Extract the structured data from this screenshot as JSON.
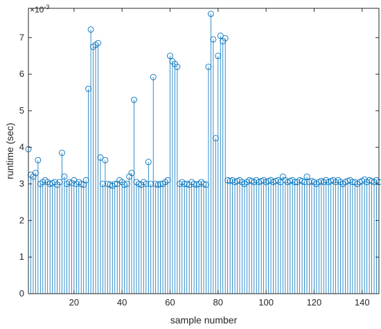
{
  "chart_data": {
    "type": "stem",
    "xlabel": "sample number",
    "ylabel": "runtime (sec)",
    "xlim": [
      1,
      147
    ],
    "ylim": [
      0,
      0.0078
    ],
    "x_ticks": [
      20,
      40,
      60,
      80,
      100,
      120,
      140
    ],
    "y_ticks": [
      0,
      0.001,
      0.002,
      0.003,
      0.004,
      0.005,
      0.006,
      0.007
    ],
    "y_tick_labels": [
      "0",
      "1",
      "2",
      "3",
      "4",
      "5",
      "6",
      "7"
    ],
    "y_exponent_base": "×10",
    "y_exponent_power": "-3",
    "grid": false,
    "color": "#0072BD",
    "series": [
      {
        "x_start": 1,
        "values": [
          0.00395,
          0.00325,
          0.0032,
          0.0033,
          0.00365,
          0.003,
          0.00305,
          0.0031,
          0.00305,
          0.003,
          0.00302,
          0.00305,
          0.00298,
          0.00305,
          0.00385,
          0.0032,
          0.003,
          0.00305,
          0.00302,
          0.0031,
          0.003,
          0.00305,
          0.003,
          0.00298,
          0.0031,
          0.0056,
          0.00722,
          0.00675,
          0.0068,
          0.00685,
          0.00372,
          0.003,
          0.00365,
          0.003,
          0.00298,
          0.00295,
          0.003,
          0.003,
          0.0031,
          0.00305,
          0.00298,
          0.003,
          0.0032,
          0.0033,
          0.0053,
          0.00305,
          0.003,
          0.00298,
          0.00305,
          0.003,
          0.0036,
          0.003,
          0.00592,
          0.003,
          0.00298,
          0.003,
          0.003,
          0.00305,
          0.0031,
          0.0065,
          0.00635,
          0.00628,
          0.0062,
          0.003,
          0.00305,
          0.003,
          0.003,
          0.00298,
          0.00305,
          0.003,
          0.00298,
          0.003,
          0.00305,
          0.003,
          0.00298,
          0.0062,
          0.00765,
          0.00695,
          0.00425,
          0.0065,
          0.00705,
          0.0069,
          0.00698,
          0.0031,
          0.00308,
          0.0031,
          0.00305,
          0.00308,
          0.0031,
          0.00305,
          0.003,
          0.00305,
          0.0031,
          0.00308,
          0.00305,
          0.0031,
          0.00305,
          0.00308,
          0.0031,
          0.00305,
          0.00308,
          0.0031,
          0.00305,
          0.00308,
          0.0031,
          0.00305,
          0.0032,
          0.0031,
          0.00305,
          0.00308,
          0.0031,
          0.00305,
          0.00305,
          0.0031,
          0.00308,
          0.00305,
          0.0032,
          0.00305,
          0.00308,
          0.00305,
          0.003,
          0.00305,
          0.00308,
          0.00305,
          0.0031,
          0.00305,
          0.00308,
          0.0031,
          0.00305,
          0.0031,
          0.00305,
          0.003,
          0.00305,
          0.00308,
          0.0031,
          0.00305,
          0.00305,
          0.003,
          0.00305,
          0.00308,
          0.00312,
          0.00305,
          0.0031,
          0.00308,
          0.00305,
          0.0031,
          0.00305
        ]
      }
    ]
  }
}
